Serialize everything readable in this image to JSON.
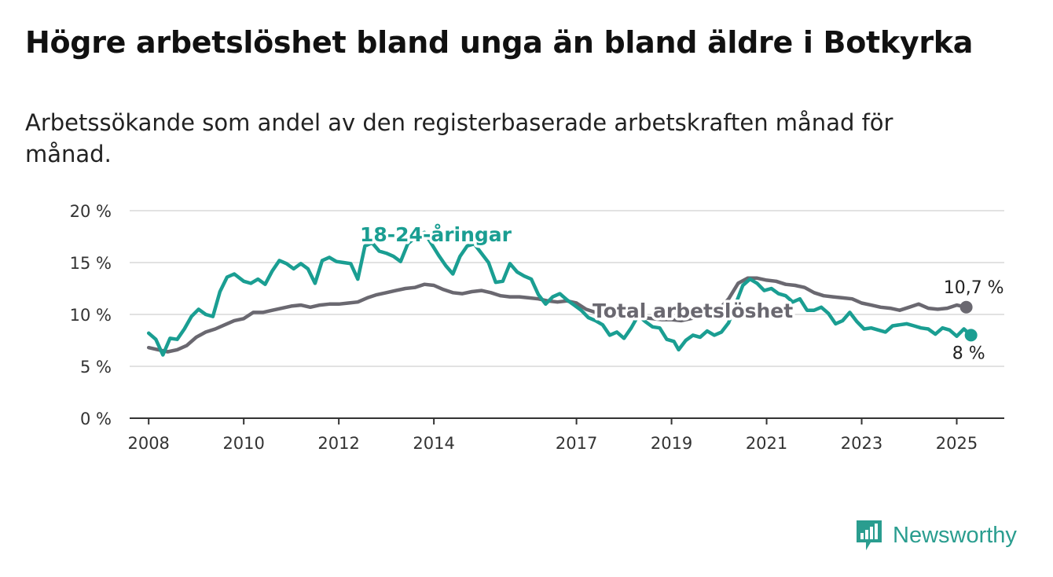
{
  "title": "Högre arbetslöshet bland unga än bland äldre i Botkyrka",
  "subtitle": "Arbetssökande som andel av den registerbaserade arbetskraften månad för månad.",
  "brand": {
    "name": "Newsworthy",
    "icon": "bar-chart-logo-icon"
  },
  "colors": {
    "youth": "#1a9e92",
    "total": "#6a6870"
  },
  "chart_data": {
    "type": "line",
    "title": "",
    "xlabel": "",
    "ylabel": "",
    "ylim": [
      0,
      20
    ],
    "xlim": [
      2007.6,
      2026.0
    ],
    "yticks": [
      0,
      5,
      10,
      15,
      20
    ],
    "ytick_labels": [
      "0 %",
      "5 %",
      "10 %",
      "15 %",
      "20 %"
    ],
    "xticks": [
      2008,
      2010,
      2012,
      2014,
      2017,
      2019,
      2021,
      2023,
      2025
    ],
    "xtick_labels": [
      "2008",
      "2010",
      "2012",
      "2014",
      "2017",
      "2019",
      "2021",
      "2023",
      "2025"
    ],
    "grid": true,
    "series": [
      {
        "name": "18-24-åringar",
        "color": "#1a9e92",
        "end_label": "8 %",
        "points": [
          [
            2008.0,
            8.2
          ],
          [
            2008.15,
            7.6
          ],
          [
            2008.3,
            6.1
          ],
          [
            2008.45,
            7.7
          ],
          [
            2008.6,
            7.6
          ],
          [
            2008.75,
            8.6
          ],
          [
            2008.9,
            9.8
          ],
          [
            2009.05,
            10.5
          ],
          [
            2009.2,
            10.0
          ],
          [
            2009.35,
            9.8
          ],
          [
            2009.5,
            12.2
          ],
          [
            2009.65,
            13.6
          ],
          [
            2009.8,
            13.9
          ],
          [
            2010.0,
            13.2
          ],
          [
            2010.15,
            13.0
          ],
          [
            2010.3,
            13.4
          ],
          [
            2010.45,
            12.9
          ],
          [
            2010.6,
            14.2
          ],
          [
            2010.75,
            15.2
          ],
          [
            2010.9,
            14.9
          ],
          [
            2011.05,
            14.4
          ],
          [
            2011.2,
            14.9
          ],
          [
            2011.35,
            14.4
          ],
          [
            2011.5,
            13.0
          ],
          [
            2011.65,
            15.2
          ],
          [
            2011.8,
            15.5
          ],
          [
            2011.95,
            15.1
          ],
          [
            2012.1,
            15.0
          ],
          [
            2012.25,
            14.9
          ],
          [
            2012.4,
            13.4
          ],
          [
            2012.55,
            16.6
          ],
          [
            2012.7,
            16.9
          ],
          [
            2012.85,
            16.1
          ],
          [
            2013.0,
            15.9
          ],
          [
            2013.15,
            15.6
          ],
          [
            2013.3,
            15.1
          ],
          [
            2013.45,
            16.8
          ],
          [
            2013.6,
            17.4
          ],
          [
            2013.8,
            17.9
          ],
          [
            2013.95,
            16.8
          ],
          [
            2014.1,
            15.7
          ],
          [
            2014.25,
            14.7
          ],
          [
            2014.4,
            13.9
          ],
          [
            2014.55,
            15.6
          ],
          [
            2014.7,
            16.6
          ],
          [
            2014.85,
            16.8
          ],
          [
            2015.0,
            15.9
          ],
          [
            2015.15,
            15.0
          ],
          [
            2015.3,
            13.1
          ],
          [
            2015.45,
            13.2
          ],
          [
            2015.6,
            14.9
          ],
          [
            2015.75,
            14.1
          ],
          [
            2015.9,
            13.7
          ],
          [
            2016.05,
            13.4
          ],
          [
            2016.2,
            11.9
          ],
          [
            2016.35,
            11.0
          ],
          [
            2016.5,
            11.7
          ],
          [
            2016.65,
            12.0
          ],
          [
            2016.8,
            11.4
          ],
          [
            2016.95,
            10.9
          ],
          [
            2017.1,
            10.4
          ],
          [
            2017.25,
            9.7
          ],
          [
            2017.4,
            9.4
          ],
          [
            2017.55,
            9.0
          ],
          [
            2017.7,
            8.0
          ],
          [
            2017.85,
            8.3
          ],
          [
            2018.0,
            7.7
          ],
          [
            2018.15,
            8.7
          ],
          [
            2018.3,
            9.9
          ],
          [
            2018.45,
            9.3
          ],
          [
            2018.6,
            8.8
          ],
          [
            2018.75,
            8.7
          ],
          [
            2018.9,
            7.6
          ],
          [
            2019.05,
            7.4
          ],
          [
            2019.15,
            6.6
          ],
          [
            2019.3,
            7.5
          ],
          [
            2019.45,
            8.0
          ],
          [
            2019.6,
            7.8
          ],
          [
            2019.75,
            8.4
          ],
          [
            2019.9,
            8.0
          ],
          [
            2020.05,
            8.3
          ],
          [
            2020.2,
            9.2
          ],
          [
            2020.35,
            11.0
          ],
          [
            2020.5,
            12.8
          ],
          [
            2020.65,
            13.4
          ],
          [
            2020.8,
            13.0
          ],
          [
            2020.95,
            12.3
          ],
          [
            2021.1,
            12.5
          ],
          [
            2021.25,
            12.0
          ],
          [
            2021.4,
            11.8
          ],
          [
            2021.55,
            11.2
          ],
          [
            2021.7,
            11.5
          ],
          [
            2021.85,
            10.4
          ],
          [
            2022.0,
            10.4
          ],
          [
            2022.15,
            10.7
          ],
          [
            2022.3,
            10.1
          ],
          [
            2022.45,
            9.1
          ],
          [
            2022.6,
            9.4
          ],
          [
            2022.75,
            10.2
          ],
          [
            2022.9,
            9.3
          ],
          [
            2023.05,
            8.6
          ],
          [
            2023.2,
            8.7
          ],
          [
            2023.35,
            8.5
          ],
          [
            2023.5,
            8.3
          ],
          [
            2023.65,
            8.9
          ],
          [
            2023.8,
            9.0
          ],
          [
            2023.95,
            9.1
          ],
          [
            2024.1,
            8.9
          ],
          [
            2024.25,
            8.7
          ],
          [
            2024.4,
            8.6
          ],
          [
            2024.55,
            8.1
          ],
          [
            2024.7,
            8.7
          ],
          [
            2024.85,
            8.5
          ],
          [
            2025.0,
            7.9
          ],
          [
            2025.15,
            8.6
          ],
          [
            2025.3,
            8.0
          ]
        ]
      },
      {
        "name": "Total arbetslöshet",
        "color": "#6a6870",
        "end_label": "10,7 %",
        "points": [
          [
            2008.0,
            6.8
          ],
          [
            2008.2,
            6.6
          ],
          [
            2008.4,
            6.4
          ],
          [
            2008.6,
            6.6
          ],
          [
            2008.8,
            7.0
          ],
          [
            2009.0,
            7.8
          ],
          [
            2009.2,
            8.3
          ],
          [
            2009.4,
            8.6
          ],
          [
            2009.6,
            9.0
          ],
          [
            2009.8,
            9.4
          ],
          [
            2010.0,
            9.6
          ],
          [
            2010.2,
            10.2
          ],
          [
            2010.4,
            10.2
          ],
          [
            2010.6,
            10.4
          ],
          [
            2010.8,
            10.6
          ],
          [
            2011.0,
            10.8
          ],
          [
            2011.2,
            10.9
          ],
          [
            2011.4,
            10.7
          ],
          [
            2011.6,
            10.9
          ],
          [
            2011.8,
            11.0
          ],
          [
            2012.0,
            11.0
          ],
          [
            2012.2,
            11.1
          ],
          [
            2012.4,
            11.2
          ],
          [
            2012.6,
            11.6
          ],
          [
            2012.8,
            11.9
          ],
          [
            2013.0,
            12.1
          ],
          [
            2013.2,
            12.3
          ],
          [
            2013.4,
            12.5
          ],
          [
            2013.6,
            12.6
          ],
          [
            2013.8,
            12.9
          ],
          [
            2014.0,
            12.8
          ],
          [
            2014.2,
            12.4
          ],
          [
            2014.4,
            12.1
          ],
          [
            2014.6,
            12.0
          ],
          [
            2014.8,
            12.2
          ],
          [
            2015.0,
            12.3
          ],
          [
            2015.2,
            12.1
          ],
          [
            2015.4,
            11.8
          ],
          [
            2015.6,
            11.7
          ],
          [
            2015.8,
            11.7
          ],
          [
            2016.0,
            11.6
          ],
          [
            2016.2,
            11.5
          ],
          [
            2016.4,
            11.3
          ],
          [
            2016.6,
            11.2
          ],
          [
            2016.8,
            11.3
          ],
          [
            2017.0,
            11.1
          ],
          [
            2017.2,
            10.5
          ],
          [
            2017.4,
            10.2
          ],
          [
            2017.6,
            9.9
          ],
          [
            2017.8,
            9.8
          ],
          [
            2018.0,
            9.8
          ],
          [
            2018.2,
            9.6
          ],
          [
            2018.4,
            9.7
          ],
          [
            2018.6,
            9.6
          ],
          [
            2018.8,
            9.5
          ],
          [
            2019.0,
            9.5
          ],
          [
            2019.2,
            9.4
          ],
          [
            2019.4,
            9.6
          ],
          [
            2019.6,
            9.8
          ],
          [
            2019.8,
            10.0
          ],
          [
            2020.0,
            10.5
          ],
          [
            2020.2,
            11.5
          ],
          [
            2020.4,
            13.0
          ],
          [
            2020.6,
            13.5
          ],
          [
            2020.8,
            13.5
          ],
          [
            2021.0,
            13.3
          ],
          [
            2021.2,
            13.2
          ],
          [
            2021.4,
            12.9
          ],
          [
            2021.6,
            12.8
          ],
          [
            2021.8,
            12.6
          ],
          [
            2022.0,
            12.1
          ],
          [
            2022.2,
            11.8
          ],
          [
            2022.4,
            11.7
          ],
          [
            2022.6,
            11.6
          ],
          [
            2022.8,
            11.5
          ],
          [
            2023.0,
            11.1
          ],
          [
            2023.2,
            10.9
          ],
          [
            2023.4,
            10.7
          ],
          [
            2023.6,
            10.6
          ],
          [
            2023.8,
            10.4
          ],
          [
            2024.0,
            10.7
          ],
          [
            2024.2,
            11.0
          ],
          [
            2024.4,
            10.6
          ],
          [
            2024.6,
            10.5
          ],
          [
            2024.8,
            10.6
          ],
          [
            2025.0,
            10.9
          ],
          [
            2025.2,
            10.7
          ]
        ]
      }
    ]
  }
}
